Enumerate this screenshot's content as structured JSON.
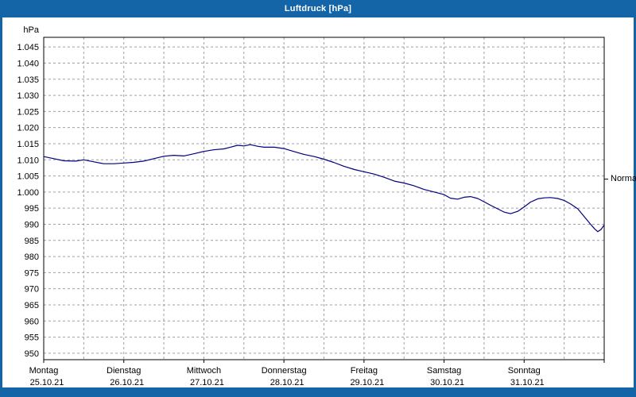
{
  "window": {
    "title": "Luftdruck [hPa]"
  },
  "colors": {
    "frame_blue": "#1464a8",
    "line": "#000080",
    "grid": "#a0a0a0",
    "plot_border": "#000000",
    "background": "#ffffff",
    "text": "#000000"
  },
  "chart_data": {
    "type": "line",
    "title": "Luftdruck [hPa]",
    "xlabel": "",
    "ylabel": "hPa",
    "ylim": [
      948,
      1048
    ],
    "xlim_days": [
      0,
      7
    ],
    "grid": "dashed",
    "legend": "none",
    "yticks": [
      1045,
      1040,
      1035,
      1030,
      1025,
      1020,
      1015,
      1010,
      1005,
      1000,
      995,
      990,
      985,
      980,
      975,
      970,
      965,
      960,
      955,
      950
    ],
    "ytick_labels": [
      "1.045",
      "1.040",
      "1.035",
      "1.030",
      "1.025",
      "1.020",
      "1.015",
      "1.010",
      "1.005",
      "1.000",
      "995",
      "990",
      "985",
      "980",
      "975",
      "970",
      "965",
      "960",
      "955",
      "950"
    ],
    "x_days": [
      {
        "name": "Montag",
        "date": "25.10.21"
      },
      {
        "name": "Dienstag",
        "date": "26.10.21"
      },
      {
        "name": "Mittwoch",
        "date": "27.10.21"
      },
      {
        "name": "Donnerstag",
        "date": "28.10.21"
      },
      {
        "name": "Freitag",
        "date": "29.10.21"
      },
      {
        "name": "Samstag",
        "date": "30.10.21"
      },
      {
        "name": "Sonntag",
        "date": "31.10.21"
      }
    ],
    "annotation": {
      "label": "Normal",
      "value_hpa": 1004
    },
    "series": [
      {
        "name": "Luftdruck",
        "x_days": [
          0,
          0.12,
          0.25,
          0.4,
          0.5,
          0.62,
          0.75,
          0.88,
          1.0,
          1.12,
          1.25,
          1.38,
          1.5,
          1.62,
          1.75,
          1.88,
          2.0,
          2.12,
          2.25,
          2.33,
          2.42,
          2.5,
          2.58,
          2.67,
          2.75,
          2.88,
          3.0,
          3.12,
          3.25,
          3.38,
          3.5,
          3.62,
          3.75,
          3.88,
          4.0,
          4.12,
          4.25,
          4.38,
          4.5,
          4.62,
          4.75,
          4.88,
          5.0,
          5.08,
          5.17,
          5.25,
          5.33,
          5.42,
          5.5,
          5.58,
          5.67,
          5.75,
          5.83,
          5.92,
          6.0,
          6.08,
          6.17,
          6.25,
          6.33,
          6.42,
          6.5,
          6.58,
          6.67,
          6.75,
          6.83,
          6.88,
          6.92,
          6.96,
          7.0
        ],
        "y_hpa": [
          1011,
          1010.4,
          1009.7,
          1009.6,
          1010.0,
          1009.4,
          1008.8,
          1008.8,
          1009.0,
          1009.2,
          1009.6,
          1010.4,
          1011.1,
          1011.4,
          1011.2,
          1011.9,
          1012.6,
          1013.1,
          1013.4,
          1013.9,
          1014.5,
          1014.3,
          1014.7,
          1014.2,
          1013.9,
          1013.9,
          1013.5,
          1012.6,
          1011.7,
          1011.0,
          1010.2,
          1009.2,
          1008.0,
          1007.0,
          1006.3,
          1005.6,
          1004.6,
          1003.4,
          1002.8,
          1002.0,
          1000.8,
          1000.0,
          999.2,
          998.1,
          997.8,
          998.4,
          998.6,
          998.0,
          997.0,
          995.9,
          994.8,
          993.8,
          993.3,
          994.0,
          995.4,
          996.9,
          997.9,
          998.2,
          998.3,
          998.0,
          997.4,
          996.3,
          994.8,
          992.4,
          990.0,
          988.6,
          987.7,
          988.4,
          989.8
        ]
      }
    ]
  }
}
